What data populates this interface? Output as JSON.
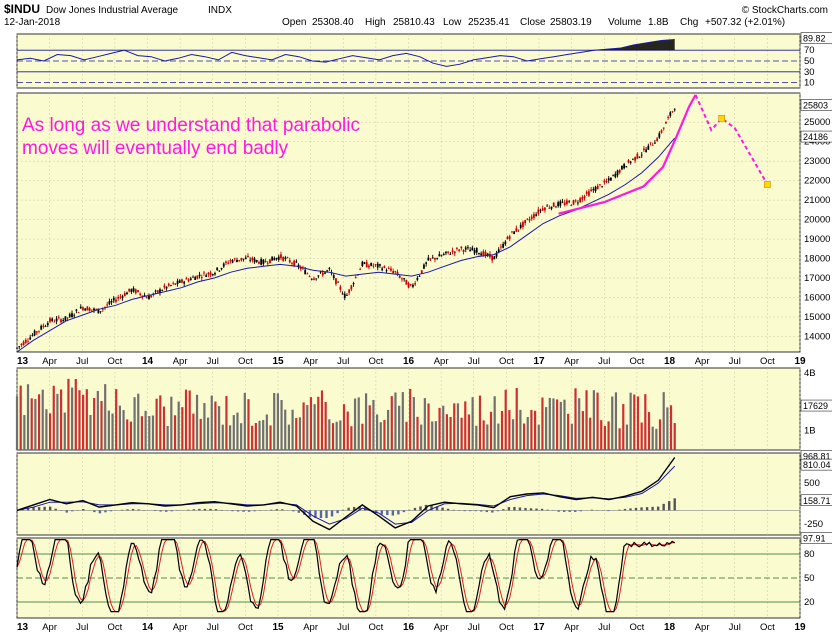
{
  "header": {
    "symbol": "$INDU",
    "name": "Dow Jones Industrial Average",
    "exchange": "INDX",
    "date": "12-Jan-2018",
    "open_label": "Open",
    "open": "25308.40",
    "high_label": "High",
    "high": "25810.43",
    "low_label": "Low",
    "low": "25235.41",
    "close_label": "Close",
    "close": "25803.19",
    "volume_label": "Volume",
    "volume": "1.8B",
    "chg_label": "Chg",
    "chg": "+507.32 (+2.01%)",
    "brand": "© StockCharts.com"
  },
  "annotation": {
    "line1": "As long as we understand that parabolic",
    "line2": "moves will eventually end badly"
  },
  "colors": {
    "panel_bg": "#fbfbd0",
    "up": "#000000",
    "down": "#cc0000",
    "ma": "#1a1aa8",
    "annotation": "#ff19e0",
    "projection": "#ff19e0",
    "marker": "#ffd800",
    "stoch_k": "#000000",
    "stoch_d": "#dd2222"
  },
  "time_axis": {
    "labels": [
      "13",
      "Apr",
      "Jul",
      "Oct",
      "14",
      "Apr",
      "Jul",
      "Oct",
      "15",
      "Apr",
      "Jul",
      "Oct",
      "16",
      "Apr",
      "Jul",
      "Oct",
      "17",
      "Apr",
      "Jul",
      "Oct",
      "18",
      "Apr",
      "Jul",
      "Oct",
      "19"
    ],
    "bold_labels": [
      "13",
      "14",
      "15",
      "16",
      "17",
      "18",
      "19"
    ]
  },
  "chart_data": [
    {
      "type": "line",
      "name": "rsi",
      "x_start": 2013.0,
      "x_end": 2018.04,
      "values": [
        52,
        55,
        50,
        62,
        60,
        52,
        58,
        64,
        70,
        60,
        58,
        50,
        55,
        62,
        58,
        52,
        66,
        60,
        56,
        52,
        62,
        58,
        50,
        48,
        54,
        60,
        56,
        52,
        60,
        64,
        58,
        46,
        40,
        44,
        52,
        56,
        60,
        58,
        50,
        54,
        58,
        62,
        66,
        70,
        72,
        74,
        80,
        84,
        88,
        89.8
      ],
      "y_ticks": [
        10,
        30,
        50,
        70
      ],
      "tag": "89.82",
      "ylim": [
        0,
        100
      ]
    },
    {
      "type": "line",
      "name": "price",
      "x_start": 2013.0,
      "x_end": 2018.04,
      "values": [
        13400,
        14100,
        14800,
        14900,
        15500,
        15300,
        15900,
        16400,
        16000,
        16500,
        16800,
        17100,
        17300,
        17900,
        18000,
        17800,
        18100,
        17700,
        17000,
        17400,
        16000,
        17700,
        17600,
        17300,
        16500,
        17900,
        18200,
        18500,
        18400,
        18000,
        19200,
        19900,
        20600,
        20800,
        20900,
        21500,
        22000,
        22800,
        23400,
        24200,
        25803
      ],
      "ma_values": [
        13200,
        13800,
        14300,
        14800,
        15100,
        15400,
        15600,
        15900,
        16100,
        16300,
        16500,
        16800,
        17000,
        17300,
        17500,
        17600,
        17700,
        17600,
        17400,
        17300,
        17100,
        17200,
        17300,
        17200,
        17100,
        17300,
        17600,
        17900,
        18100,
        18200,
        18600,
        19200,
        19800,
        20200,
        20500,
        20900,
        21300,
        21800,
        22400,
        23200,
        24186
      ],
      "y_ticks": [
        14000,
        15000,
        16000,
        17000,
        18000,
        19000,
        20000,
        21000,
        22000,
        23000,
        24000,
        25000
      ],
      "ma_tag": "24186",
      "close_tag": "25803",
      "ylim": [
        13200,
        26500
      ],
      "parabola": [
        [
          2017.15,
          20300
        ],
        [
          2017.5,
          20900
        ],
        [
          2017.8,
          21700
        ],
        [
          2017.95,
          22700
        ],
        [
          2018.05,
          24200
        ],
        [
          2018.15,
          25800
        ],
        [
          2018.2,
          26400
        ]
      ],
      "projection": [
        [
          2018.2,
          26400
        ],
        [
          2018.32,
          24600
        ],
        [
          2018.4,
          25200
        ],
        [
          2018.5,
          24700
        ],
        [
          2018.75,
          21800
        ]
      ]
    },
    {
      "type": "bar",
      "name": "volume",
      "x_start": 2013.0,
      "x_end": 2018.04,
      "y_ticks": [
        "4B",
        "1B"
      ],
      "tag": "17629",
      "ylim": [
        0,
        4.2
      ]
    },
    {
      "type": "line",
      "name": "macd",
      "x_start": 2013.0,
      "x_end": 2018.04,
      "macd": [
        0,
        100,
        200,
        120,
        180,
        60,
        100,
        140,
        120,
        80,
        100,
        140,
        160,
        120,
        80,
        100,
        150,
        80,
        -200,
        -350,
        -120,
        100,
        -100,
        -320,
        -200,
        80,
        150,
        120,
        100,
        50,
        250,
        300,
        320,
        250,
        200,
        240,
        200,
        260,
        350,
        550,
        968
      ],
      "signal": [
        0,
        60,
        150,
        150,
        160,
        100,
        100,
        120,
        120,
        100,
        100,
        120,
        140,
        130,
        100,
        100,
        130,
        100,
        -100,
        -250,
        -150,
        40,
        -50,
        -250,
        -220,
        0,
        120,
        130,
        110,
        80,
        200,
        270,
        300,
        270,
        220,
        230,
        210,
        240,
        310,
        500,
        810
      ],
      "y_ticks": [
        500,
        -250
      ],
      "tags": [
        "968.81",
        "810.04",
        "158.71"
      ],
      "ylim": [
        -450,
        1050
      ]
    },
    {
      "type": "line",
      "name": "stochastics",
      "x_start": 2013.0,
      "x_end": 2018.04,
      "y_ticks": [
        20,
        50,
        80
      ],
      "tag": "97.91",
      "ylim": [
        0,
        100
      ]
    }
  ]
}
